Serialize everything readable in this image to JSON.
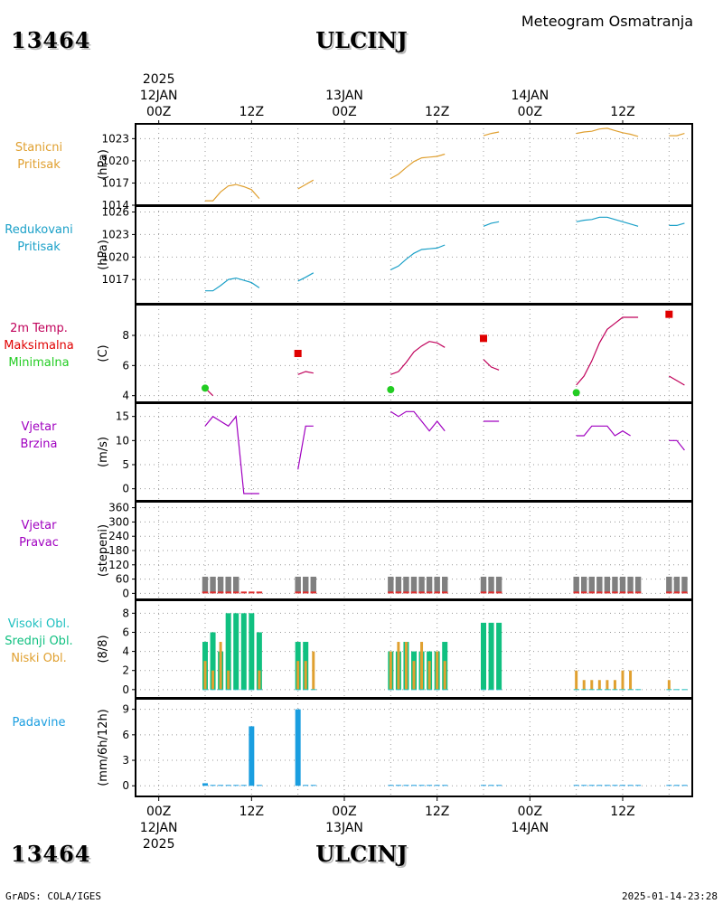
{
  "header": {
    "station_id": "13464",
    "city": "ULCINJ",
    "subtitle": "Meteogram Osmatranja"
  },
  "footer": {
    "credit": "GrADS: COLA/IGES",
    "timestamp": "2025-01-14-23:28"
  },
  "colors": {
    "station_pressure": "#e0a030",
    "reduced_pressure": "#1aa0c8",
    "temperature": "#c0005a",
    "tmax": "#e00000",
    "tmin": "#22cc22",
    "wind": "#a000c0",
    "wind_dir_bar": "#808080",
    "wind_dir_base": "#e03030",
    "high_cloud": "#20c0c0",
    "mid_cloud": "#10c080",
    "low_cloud": "#e0a030",
    "precip": "#1a9ee0"
  },
  "time_axis": {
    "top_year": "2025",
    "top_labels": [
      {
        "h": 0,
        "hour": "00Z",
        "date": "12JAN"
      },
      {
        "h": 12,
        "hour": "12Z",
        "date": ""
      },
      {
        "h": 24,
        "hour": "00Z",
        "date": "13JAN"
      },
      {
        "h": 36,
        "hour": "12Z",
        "date": ""
      },
      {
        "h": 48,
        "hour": "00Z",
        "date": "14JAN"
      },
      {
        "h": 60,
        "hour": "12Z",
        "date": ""
      }
    ],
    "bottom_year": "2025",
    "bottom_labels": [
      {
        "h": 0,
        "hour": "00Z",
        "date": "12JAN"
      },
      {
        "h": 12,
        "hour": "12Z",
        "date": ""
      },
      {
        "h": 24,
        "hour": "00Z",
        "date": "13JAN"
      },
      {
        "h": 36,
        "hour": "12Z",
        "date": ""
      },
      {
        "h": 48,
        "hour": "00Z",
        "date": "14JAN"
      },
      {
        "h": 60,
        "hour": "12Z",
        "date": ""
      }
    ]
  },
  "chart_data": [
    {
      "type": "line",
      "id": "station_pressure",
      "label_lines": [
        "Stanicni",
        "Pritisak"
      ],
      "ylabel": "(hPa)",
      "ylim": [
        1014,
        1025
      ],
      "yticks": [
        1014,
        1017,
        1020,
        1023
      ],
      "x_unit": "hours since 12JAN 00Z",
      "segments": [
        [
          [
            6,
            1014.6
          ],
          [
            7,
            1014.6
          ],
          [
            8,
            1015.8
          ],
          [
            9,
            1016.6
          ],
          [
            10,
            1016.8
          ],
          [
            11,
            1016.5
          ],
          [
            12,
            1016.1
          ],
          [
            13,
            1014.9
          ]
        ],
        [
          [
            18,
            1016.2
          ],
          [
            19,
            1016.8
          ],
          [
            20,
            1017.4
          ]
        ],
        [
          [
            30,
            1017.6
          ],
          [
            31,
            1018.2
          ],
          [
            32,
            1019.1
          ],
          [
            33,
            1019.9
          ],
          [
            34,
            1020.4
          ],
          [
            35,
            1020.5
          ],
          [
            36,
            1020.6
          ],
          [
            37,
            1020.9
          ]
        ],
        [
          [
            42,
            1023.4
          ],
          [
            43,
            1023.7
          ],
          [
            44,
            1023.9
          ]
        ],
        [
          [
            54,
            1023.7
          ],
          [
            55,
            1023.9
          ],
          [
            56,
            1024.0
          ],
          [
            57,
            1024.3
          ],
          [
            58,
            1024.4
          ],
          [
            59,
            1024.1
          ],
          [
            60,
            1023.8
          ],
          [
            61,
            1023.6
          ],
          [
            62,
            1023.3
          ]
        ],
        [
          [
            66,
            1023.4
          ],
          [
            67,
            1023.4
          ],
          [
            68,
            1023.7
          ]
        ]
      ]
    },
    {
      "type": "line",
      "id": "reduced_pressure",
      "label_lines": [
        "Redukovani",
        "Pritisak"
      ],
      "ylabel": "(hPa)",
      "ylim": [
        1014.5,
        1026.3
      ],
      "yticks": [
        1017,
        1020,
        1023,
        1026
      ],
      "segments": [
        [
          [
            6,
            1015.5
          ],
          [
            7,
            1015.5
          ],
          [
            8,
            1016.2
          ],
          [
            9,
            1017.0
          ],
          [
            10,
            1017.2
          ],
          [
            11,
            1016.9
          ],
          [
            12,
            1016.6
          ],
          [
            13,
            1015.9
          ]
        ],
        [
          [
            18,
            1016.8
          ],
          [
            19,
            1017.3
          ],
          [
            20,
            1017.9
          ]
        ],
        [
          [
            30,
            1018.3
          ],
          [
            31,
            1018.8
          ],
          [
            32,
            1019.7
          ],
          [
            33,
            1020.5
          ],
          [
            34,
            1021.0
          ],
          [
            35,
            1021.1
          ],
          [
            36,
            1021.2
          ],
          [
            37,
            1021.6
          ]
        ],
        [
          [
            42,
            1024.1
          ],
          [
            43,
            1024.5
          ],
          [
            44,
            1024.7
          ]
        ],
        [
          [
            54,
            1024.7
          ],
          [
            55,
            1024.9
          ],
          [
            56,
            1025.0
          ],
          [
            57,
            1025.3
          ],
          [
            58,
            1025.3
          ],
          [
            59,
            1025.0
          ],
          [
            60,
            1024.7
          ],
          [
            61,
            1024.4
          ],
          [
            62,
            1024.1
          ]
        ],
        [
          [
            66,
            1024.2
          ],
          [
            67,
            1024.2
          ],
          [
            68,
            1024.5
          ]
        ]
      ]
    },
    {
      "type": "line",
      "id": "temperature",
      "label_lines": [
        "2m Temp.",
        "Maksimalna",
        "Minimalna"
      ],
      "ylabel": "(C)",
      "ylim": [
        3.8,
        9.8
      ],
      "yticks": [
        4,
        6,
        8
      ],
      "segments": [
        [
          [
            6,
            4.5
          ],
          [
            7,
            4.0
          ]
        ],
        [
          [
            18,
            5.4
          ],
          [
            19,
            5.6
          ],
          [
            20,
            5.5
          ]
        ],
        [
          [
            30,
            5.4
          ],
          [
            31,
            5.6
          ],
          [
            32,
            6.2
          ],
          [
            33,
            6.9
          ],
          [
            34,
            7.3
          ],
          [
            35,
            7.6
          ],
          [
            36,
            7.5
          ],
          [
            37,
            7.2
          ]
        ],
        [
          [
            42,
            6.4
          ],
          [
            43,
            5.9
          ],
          [
            44,
            5.7
          ]
        ],
        [
          [
            54,
            4.7
          ],
          [
            55,
            5.3
          ],
          [
            56,
            6.3
          ],
          [
            57,
            7.5
          ],
          [
            58,
            8.4
          ],
          [
            59,
            8.8
          ],
          [
            60,
            9.2
          ],
          [
            61,
            9.2
          ],
          [
            62,
            9.2
          ]
        ],
        [
          [
            66,
            5.3
          ],
          [
            67,
            5.0
          ],
          [
            68,
            4.7
          ]
        ]
      ],
      "tmax": [
        [
          18,
          6.8
        ],
        [
          42,
          7.8
        ],
        [
          66,
          9.4
        ]
      ],
      "tmin": [
        [
          6,
          4.5
        ],
        [
          30,
          4.4
        ],
        [
          54,
          4.2
        ]
      ]
    },
    {
      "type": "line",
      "id": "wind_speed",
      "label_lines": [
        "Vjetar",
        "Brzina"
      ],
      "ylabel": "(m/s)",
      "ylim": [
        -1,
        17
      ],
      "yticks": [
        0,
        5,
        10,
        15
      ],
      "segments": [
        [
          [
            6,
            13
          ],
          [
            7,
            15
          ],
          [
            8,
            14
          ],
          [
            9,
            13
          ],
          [
            10,
            15
          ],
          [
            11,
            -1
          ],
          [
            12,
            -1
          ],
          [
            13,
            -1
          ]
        ],
        [
          [
            18,
            4
          ],
          [
            19,
            13
          ],
          [
            20,
            13
          ]
        ],
        [
          [
            30,
            16
          ],
          [
            31,
            15
          ],
          [
            32,
            16
          ],
          [
            33,
            16
          ],
          [
            34,
            14
          ],
          [
            35,
            12
          ],
          [
            36,
            14
          ],
          [
            37,
            12
          ]
        ],
        [
          [
            42,
            14
          ],
          [
            43,
            14
          ],
          [
            44,
            14
          ]
        ],
        [
          [
            54,
            11
          ],
          [
            55,
            11
          ],
          [
            56,
            13
          ],
          [
            57,
            13
          ],
          [
            58,
            13
          ],
          [
            59,
            11
          ],
          [
            60,
            12
          ],
          [
            61,
            11
          ]
        ],
        [
          [
            66,
            10
          ],
          [
            67,
            10
          ],
          [
            68,
            8
          ]
        ]
      ]
    },
    {
      "type": "bar",
      "id": "wind_direction",
      "label_lines": [
        "Vjetar",
        "Pravac"
      ],
      "ylabel": "(stepeni)",
      "ylim": [
        -10,
        370
      ],
      "yticks": [
        0,
        60,
        120,
        180,
        240,
        300,
        360
      ],
      "hours": [
        6,
        7,
        8,
        9,
        10,
        11,
        12,
        13,
        18,
        19,
        20,
        30,
        31,
        32,
        33,
        34,
        35,
        36,
        37,
        42,
        43,
        44,
        54,
        55,
        56,
        57,
        58,
        59,
        60,
        61,
        62,
        66,
        67,
        68
      ],
      "values": [
        70,
        70,
        70,
        70,
        70,
        0,
        0,
        0,
        70,
        70,
        70,
        70,
        70,
        70,
        70,
        70,
        70,
        70,
        70,
        70,
        70,
        70,
        70,
        70,
        70,
        70,
        70,
        70,
        70,
        70,
        70,
        70,
        70,
        70
      ]
    },
    {
      "type": "bar",
      "id": "cloud_cover",
      "label_lines": [
        "Visoki Obl.",
        "Srednji Obl.",
        "Niski Obl."
      ],
      "ylabel": "(8/8)",
      "ylim": [
        -0.3,
        8.6
      ],
      "yticks": [
        0,
        2,
        4,
        6,
        8
      ],
      "hours": [
        6,
        7,
        8,
        9,
        10,
        11,
        12,
        13,
        18,
        19,
        20,
        30,
        31,
        32,
        33,
        34,
        35,
        36,
        37,
        42,
        43,
        44,
        54,
        55,
        56,
        57,
        58,
        59,
        60,
        61,
        62,
        66,
        67,
        68
      ],
      "series": [
        {
          "name": "Visoki Obl.",
          "values": [
            5,
            6,
            4,
            8,
            8,
            8,
            8,
            6,
            5,
            5,
            0,
            4,
            4,
            5,
            4,
            4,
            4,
            4,
            5,
            7,
            7,
            7,
            0,
            0,
            0,
            0,
            0,
            0,
            0,
            0,
            0,
            0,
            0,
            0
          ]
        },
        {
          "name": "Srednji Obl.",
          "values": [
            5,
            6,
            4,
            8,
            8,
            8,
            8,
            6,
            5,
            5,
            0,
            4,
            4,
            5,
            4,
            4,
            4,
            4,
            5,
            7,
            7,
            7,
            0,
            0,
            0,
            0,
            0,
            0,
            0,
            0,
            0,
            0,
            0,
            0
          ]
        },
        {
          "name": "Niski Obl.",
          "values": [
            3,
            2,
            5,
            2,
            0,
            0,
            0,
            2,
            3,
            3,
            4,
            4,
            5,
            5,
            3,
            5,
            3,
            4,
            3,
            0,
            0,
            0,
            2,
            1,
            1,
            1,
            1,
            1,
            2,
            2,
            0,
            1,
            0,
            0
          ]
        }
      ]
    },
    {
      "type": "bar",
      "id": "precipitation",
      "label_lines": [
        "Padavine"
      ],
      "ylabel": "(mm/6h/12h)",
      "ylim": [
        -0.4,
        9.6
      ],
      "yticks": [
        0,
        3,
        6,
        9
      ],
      "hours": [
        6,
        7,
        8,
        9,
        10,
        11,
        12,
        13,
        18,
        19,
        20,
        30,
        31,
        32,
        33,
        34,
        35,
        36,
        37,
        42,
        43,
        44,
        54,
        55,
        56,
        57,
        58,
        59,
        60,
        61,
        62,
        66,
        67,
        68
      ],
      "values": [
        0.3,
        0.1,
        0.1,
        0.1,
        0.1,
        0.1,
        7.0,
        0.1,
        9.0,
        0.1,
        0.1,
        0.1,
        0.1,
        0.1,
        0.1,
        0.1,
        0.1,
        0.1,
        0.1,
        0.1,
        0.1,
        0.1,
        0.1,
        0.1,
        0.1,
        0.1,
        0.1,
        0.1,
        0.1,
        0.1,
        0.1,
        0.1,
        0.1,
        0.1
      ]
    }
  ]
}
